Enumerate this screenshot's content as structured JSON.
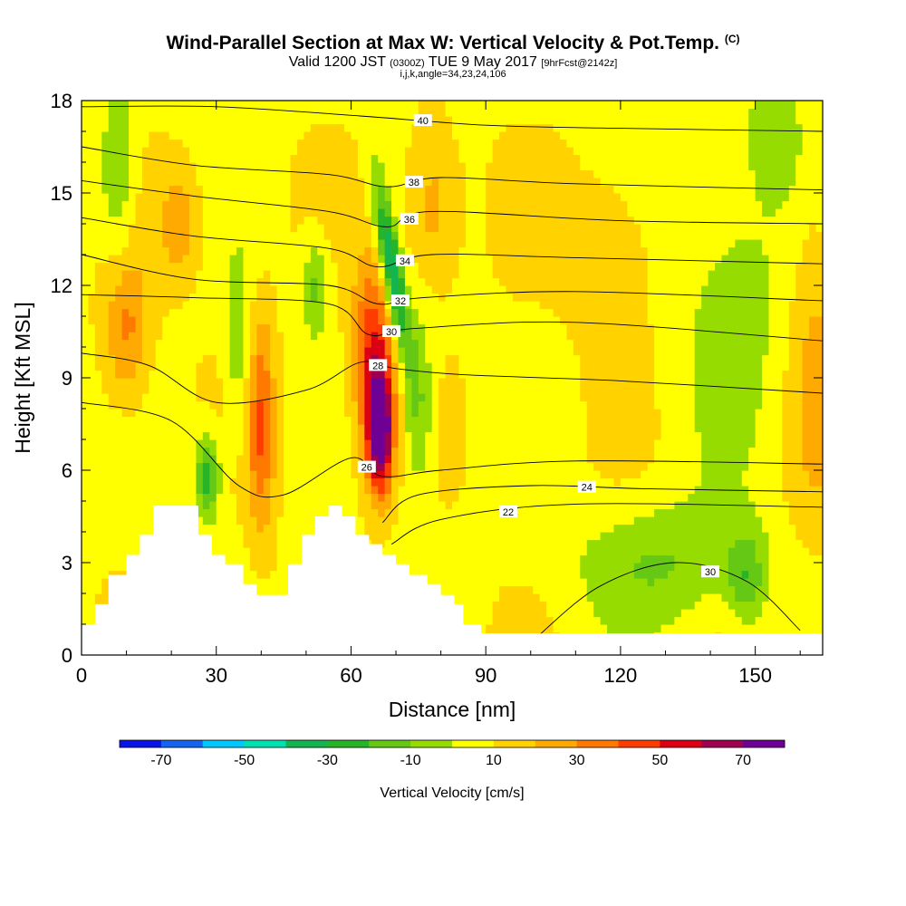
{
  "header": {
    "title_main": "Wind-Parallel Section at Max W: Vertical Velocity & Pot.Temp.",
    "title_copyright": "(C)",
    "valid_prefix": "Valid 1200 JST",
    "valid_zulu": "(0300Z)",
    "valid_date": "TUE 9 May 2017",
    "forecast": "[9hrFcst@2142z]",
    "indices": "i,j,k,angle=34,23,24,106"
  },
  "chart_data": {
    "type": "contour",
    "xlabel": "Distance [nm]",
    "ylabel": "Height [Kft MSL]",
    "xlim": [
      0,
      165
    ],
    "ylim": [
      0,
      18
    ],
    "xticks": [
      0,
      30,
      60,
      90,
      120,
      150
    ],
    "yticks": [
      0,
      3,
      6,
      9,
      12,
      15,
      18
    ],
    "colorbar": {
      "label": "Vertical Velocity [cm/s]",
      "bounds": [
        -80,
        -70,
        -60,
        -50,
        -40,
        -30,
        -20,
        -10,
        0,
        10,
        20,
        30,
        40,
        50,
        60,
        70,
        80
      ],
      "tick_labels": [
        "-70",
        "-50",
        "-30",
        "-10",
        "10",
        "30",
        "50",
        "70"
      ],
      "colors": [
        "#0a14e6",
        "#1464f0",
        "#00c8ff",
        "#00e0b0",
        "#14b450",
        "#28b428",
        "#64c814",
        "#96dc00",
        "#ffff00",
        "#ffd200",
        "#ffaa00",
        "#ff7800",
        "#ff3c00",
        "#dc0014",
        "#a00050",
        "#6e0096"
      ]
    },
    "w_field_features": [
      {
        "kind": "updraft",
        "x": 66,
        "y_range": [
          4.5,
          11
        ],
        "peak_cm_s": 75
      },
      {
        "kind": "downdraft",
        "x": 70,
        "y_range": [
          10,
          14.5
        ],
        "min_cm_s": -55
      },
      {
        "kind": "downdraft",
        "x": 28,
        "y_range": [
          4.8,
          7
        ],
        "min_cm_s": -40
      },
      {
        "kind": "updraft",
        "x": 40,
        "y_range": [
          5,
          11
        ],
        "peak_cm_s": 35
      },
      {
        "kind": "updraft",
        "x": 10,
        "y_range": [
          9,
          12
        ],
        "peak_cm_s": 30
      }
    ],
    "theta_contours": [
      {
        "label": "40",
        "points": [
          [
            0,
            17.8
          ],
          [
            30,
            17.8
          ],
          [
            62,
            17.5
          ],
          [
            90,
            17.2
          ],
          [
            120,
            17.1
          ],
          [
            165,
            17.0
          ]
        ]
      },
      {
        "label": "38",
        "points": [
          [
            0,
            16.5
          ],
          [
            25,
            15.9
          ],
          [
            55,
            15.6
          ],
          [
            68,
            15.2
          ],
          [
            80,
            15.5
          ],
          [
            110,
            15.3
          ],
          [
            165,
            15.1
          ]
        ]
      },
      {
        "label": "36",
        "points": [
          [
            0,
            15.4
          ],
          [
            25,
            14.9
          ],
          [
            55,
            14.4
          ],
          [
            68,
            13.9
          ],
          [
            78,
            14.4
          ],
          [
            120,
            14.1
          ],
          [
            165,
            14.0
          ]
        ]
      },
      {
        "label": "34",
        "points": [
          [
            0,
            14.2
          ],
          [
            25,
            13.6
          ],
          [
            55,
            13.2
          ],
          [
            66,
            12.6
          ],
          [
            78,
            13.0
          ],
          [
            110,
            12.9
          ],
          [
            165,
            12.7
          ]
        ]
      },
      {
        "label": "32",
        "points": [
          [
            0,
            13.0
          ],
          [
            25,
            12.2
          ],
          [
            55,
            12.0
          ],
          [
            66,
            11.4
          ],
          [
            76,
            11.6
          ],
          [
            110,
            11.8
          ],
          [
            165,
            11.5
          ]
        ]
      },
      {
        "label": "30",
        "points": [
          [
            0,
            11.7
          ],
          [
            25,
            11.6
          ],
          [
            55,
            11.4
          ],
          [
            64,
            10.4
          ],
          [
            74,
            10.6
          ],
          [
            110,
            10.8
          ],
          [
            165,
            10.2
          ]
        ]
      },
      {
        "label": "28",
        "points": [
          [
            0,
            9.8
          ],
          [
            15,
            9.4
          ],
          [
            30,
            8.2
          ],
          [
            50,
            8.6
          ],
          [
            62,
            9.5
          ],
          [
            70,
            9.3
          ],
          [
            85,
            9.1
          ],
          [
            120,
            8.9
          ],
          [
            165,
            8.5
          ]
        ]
      },
      {
        "label": "26",
        "points": [
          [
            0,
            8.2
          ],
          [
            20,
            7.6
          ],
          [
            35,
            5.5
          ],
          [
            45,
            5.2
          ],
          [
            60,
            6.4
          ],
          [
            67,
            5.8
          ],
          [
            80,
            6.0
          ],
          [
            110,
            6.3
          ],
          [
            165,
            6.2
          ]
        ]
      },
      {
        "label": "24",
        "points": [
          [
            67,
            4.3
          ],
          [
            75,
            5.2
          ],
          [
            100,
            5.5
          ],
          [
            125,
            5.4
          ],
          [
            165,
            5.3
          ]
        ]
      },
      {
        "label": "22",
        "points": [
          [
            69,
            3.6
          ],
          [
            80,
            4.4
          ],
          [
            110,
            4.9
          ],
          [
            165,
            4.8
          ]
        ]
      },
      {
        "label": "30",
        "points": [
          [
            100,
            0.4
          ],
          [
            115,
            2.2
          ],
          [
            132,
            3.0
          ],
          [
            148,
            2.4
          ],
          [
            160,
            0.8
          ]
        ]
      }
    ],
    "terrain": [
      [
        0,
        1
      ],
      [
        3,
        1
      ],
      [
        3,
        1.65
      ],
      [
        6,
        1.65
      ],
      [
        6,
        2.6
      ],
      [
        10,
        2.6
      ],
      [
        10,
        3.25
      ],
      [
        13,
        3.25
      ],
      [
        13,
        3.9
      ],
      [
        16,
        3.9
      ],
      [
        16,
        4.85
      ],
      [
        26,
        4.85
      ],
      [
        26,
        3.9
      ],
      [
        29,
        3.9
      ],
      [
        29,
        3.25
      ],
      [
        32,
        3.25
      ],
      [
        32,
        2.95
      ],
      [
        36,
        2.95
      ],
      [
        36,
        2.3
      ],
      [
        39,
        2.3
      ],
      [
        39,
        1.95
      ],
      [
        46,
        1.95
      ],
      [
        46,
        2.95
      ],
      [
        49,
        2.95
      ],
      [
        49,
        3.9
      ],
      [
        52,
        3.9
      ],
      [
        52,
        4.5
      ],
      [
        55,
        4.5
      ],
      [
        55,
        4.85
      ],
      [
        58,
        4.85
      ],
      [
        58,
        4.5
      ],
      [
        61,
        4.5
      ],
      [
        61,
        3.9
      ],
      [
        64,
        3.9
      ],
      [
        64,
        3.6
      ],
      [
        67,
        3.6
      ],
      [
        67,
        3.25
      ],
      [
        70,
        3.25
      ],
      [
        70,
        2.95
      ],
      [
        73,
        2.95
      ],
      [
        73,
        2.6
      ],
      [
        77,
        2.6
      ],
      [
        77,
        2.3
      ],
      [
        80,
        2.3
      ],
      [
        80,
        1.95
      ],
      [
        83,
        1.95
      ],
      [
        83,
        1.65
      ],
      [
        85,
        1.65
      ],
      [
        85,
        1.0
      ],
      [
        89,
        1.0
      ],
      [
        89,
        0.7
      ],
      [
        165,
        0.7
      ]
    ]
  }
}
